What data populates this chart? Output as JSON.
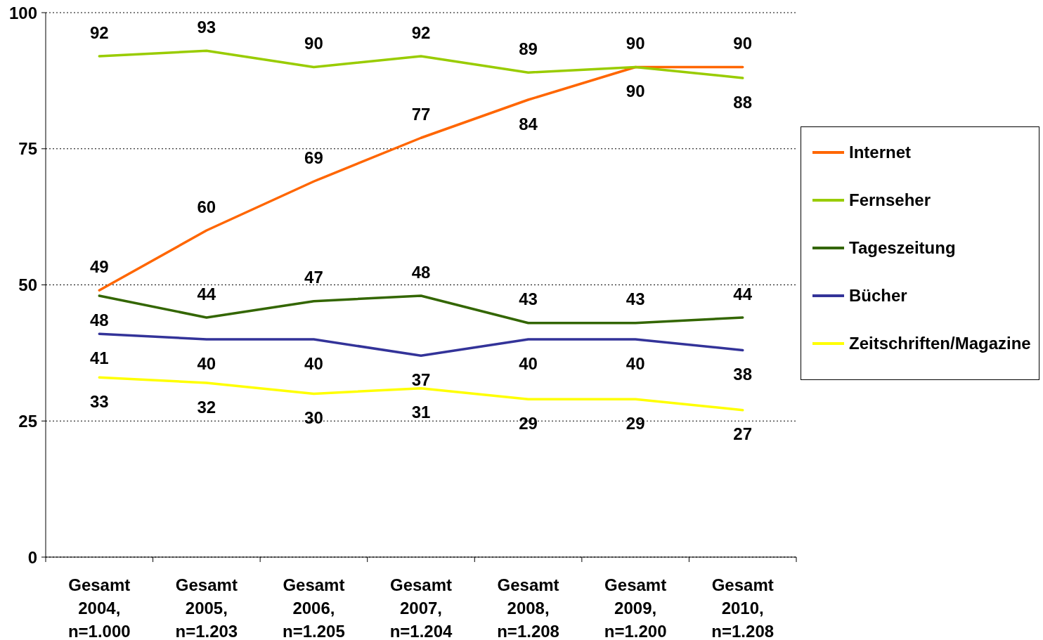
{
  "chart_data": {
    "type": "line",
    "categories": [
      "Gesamt 2004, n=1.000",
      "Gesamt 2005, n=1.203",
      "Gesamt 2006, n=1.205",
      "Gesamt 2007, n=1.204",
      "Gesamt 2008, n=1.208",
      "Gesamt 2009, n=1.200",
      "Gesamt 2010, n=1.208"
    ],
    "series": [
      {
        "name": "Internet",
        "color": "#ff6600",
        "values": [
          49,
          60,
          69,
          77,
          84,
          90,
          90
        ]
      },
      {
        "name": "Fernseher",
        "color": "#99cc00",
        "values": [
          92,
          93,
          90,
          92,
          89,
          90,
          88
        ]
      },
      {
        "name": "Tageszeitung",
        "color": "#336600",
        "values": [
          48,
          44,
          47,
          48,
          43,
          43,
          44
        ]
      },
      {
        "name": "Bücher",
        "color": "#333399",
        "values": [
          41,
          40,
          40,
          37,
          40,
          40,
          38
        ]
      },
      {
        "name": "Zeitschriften/Magazine",
        "color": "#ffff00",
        "values": [
          33,
          32,
          30,
          31,
          29,
          29,
          27
        ]
      }
    ],
    "ylim": [
      0,
      100
    ],
    "yticks": [
      0,
      25,
      50,
      75,
      100
    ],
    "grid": "y",
    "legend": "right",
    "data_labels": true
  }
}
